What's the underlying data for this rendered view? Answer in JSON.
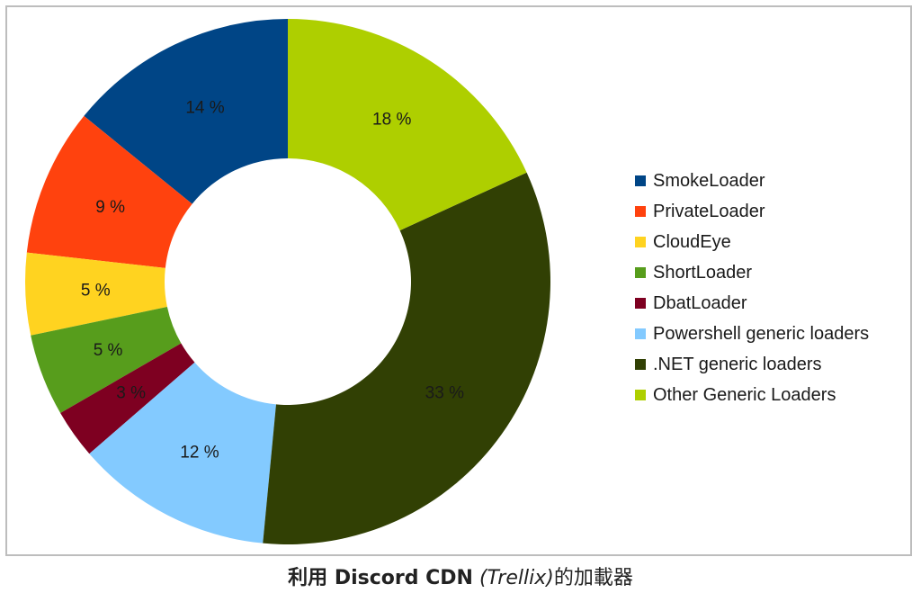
{
  "chart_data": {
    "type": "pie",
    "donut": true,
    "slices": [
      {
        "label": "SmokeLoader",
        "value": 14,
        "value_label": "14 %",
        "color": "#004586"
      },
      {
        "label": "PrivateLoader",
        "value": 9,
        "value_label": "9 %",
        "color": "#ff420e"
      },
      {
        "label": "CloudEye",
        "value": 5,
        "value_label": "5 %",
        "color": "#ffd320"
      },
      {
        "label": "ShortLoader",
        "value": 5,
        "value_label": "5 %",
        "color": "#579d1c"
      },
      {
        "label": "DbatLoader",
        "value": 3,
        "value_label": "3 %",
        "color": "#7e0021"
      },
      {
        "label": "Powershell generic loaders",
        "value": 12,
        "value_label": "12 %",
        "color": "#83caff"
      },
      {
        "label": ".NET generic loaders",
        "value": 33,
        "value_label": "33 %",
        "color": "#314004"
      },
      {
        "label": "Other Generic Loaders",
        "value": 18,
        "value_label": "18 %",
        "color": "#aecf00"
      }
    ],
    "legend_position": "right"
  },
  "caption": {
    "bold_part": "利用 Discord CDN",
    "italic_part": "(Trellix)",
    "plain_part": "的加載器"
  }
}
